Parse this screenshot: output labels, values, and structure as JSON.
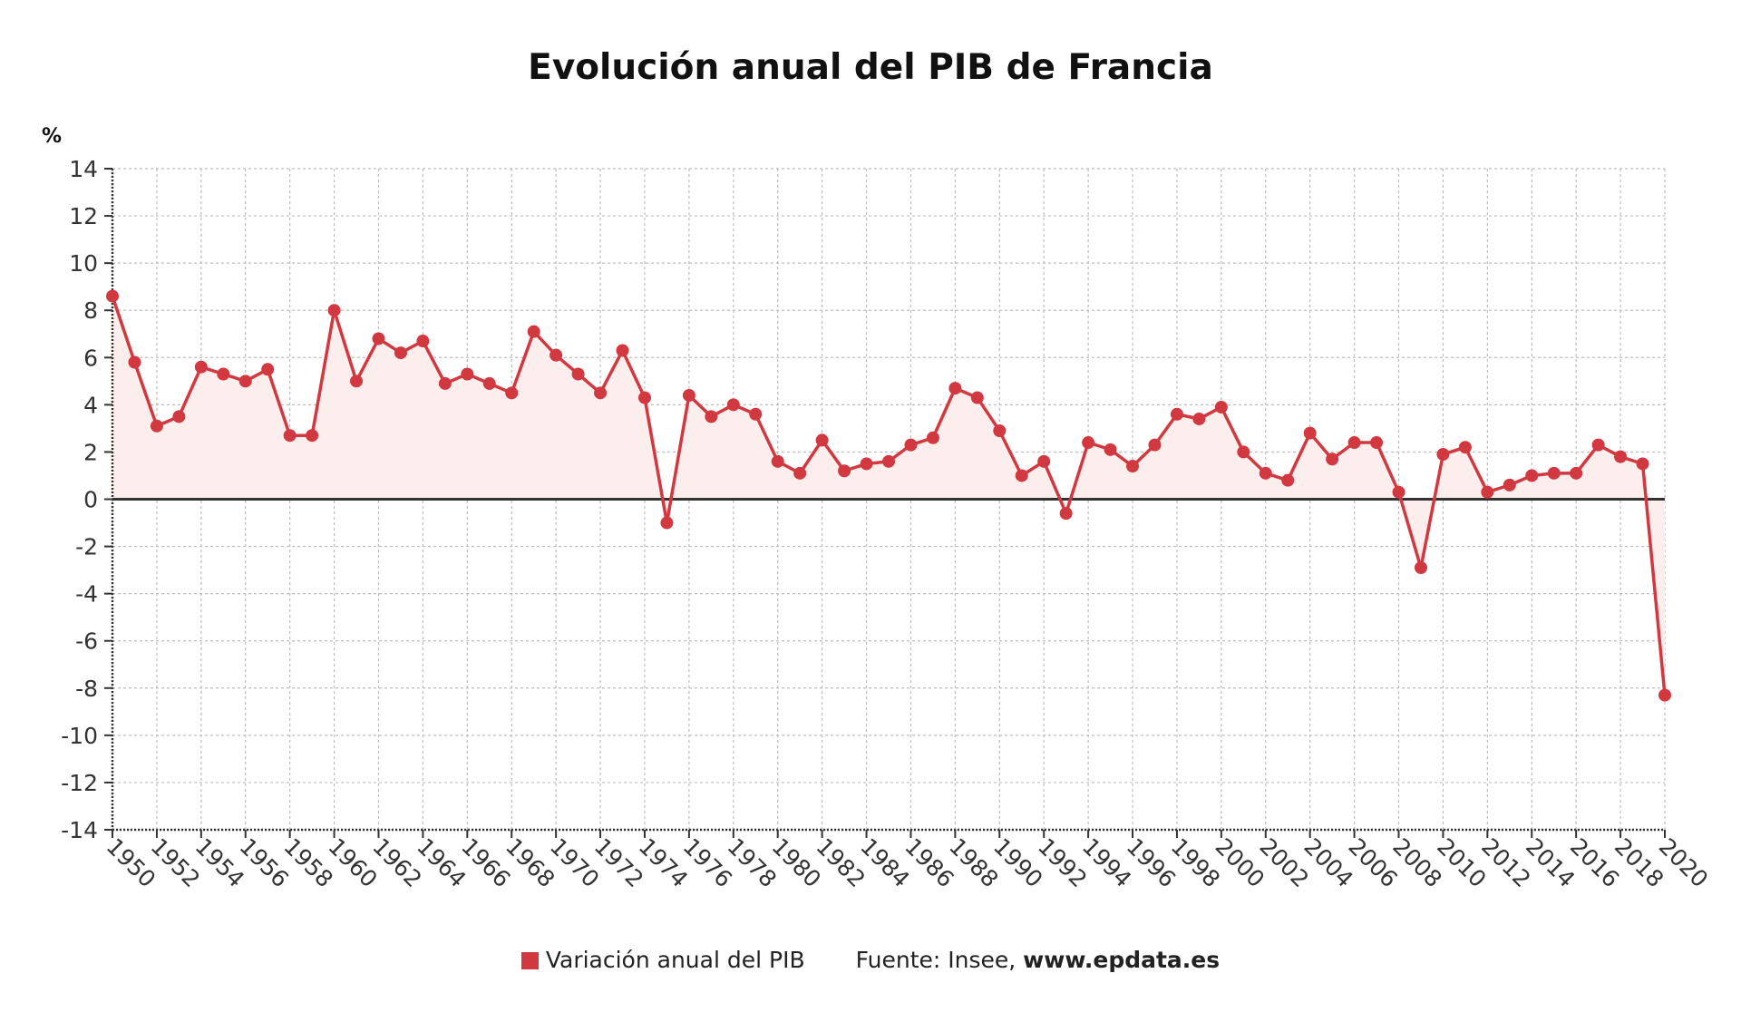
{
  "chart_data": {
    "type": "line",
    "title": "Evolución anual del PIB de Francia",
    "ylabel": "%",
    "xlabel": "",
    "ylim": [
      -14,
      14
    ],
    "yticks": [
      14,
      12,
      10,
      8,
      6,
      4,
      2,
      0,
      -2,
      -4,
      -6,
      -8,
      -10,
      -12,
      -14
    ],
    "xlim": [
      1950,
      2020
    ],
    "xticks": [
      "1950",
      "1952",
      "1954",
      "1956",
      "1958",
      "1960",
      "1962",
      "1964",
      "1966",
      "1968",
      "1970",
      "1972",
      "1974",
      "1976",
      "1978",
      "1980",
      "1982",
      "1984",
      "1986",
      "1988",
      "1990",
      "1992",
      "1994",
      "1996",
      "1998",
      "2000",
      "2002",
      "2004",
      "2006",
      "2008",
      "2010",
      "2012",
      "2014",
      "2016",
      "2018",
      "2020"
    ],
    "grid": true,
    "series": [
      {
        "name": "Variación anual del PIB",
        "color": "#d2383f",
        "fill": "#fdeeee",
        "x": [
          1950,
          1951,
          1952,
          1953,
          1954,
          1955,
          1956,
          1957,
          1958,
          1959,
          1960,
          1961,
          1962,
          1963,
          1964,
          1965,
          1966,
          1967,
          1968,
          1969,
          1970,
          1971,
          1972,
          1973,
          1974,
          1975,
          1976,
          1977,
          1978,
          1979,
          1980,
          1981,
          1982,
          1983,
          1984,
          1985,
          1986,
          1987,
          1988,
          1989,
          1990,
          1991,
          1992,
          1993,
          1994,
          1995,
          1996,
          1997,
          1998,
          1999,
          2000,
          2001,
          2002,
          2003,
          2004,
          2005,
          2006,
          2007,
          2008,
          2009,
          2010,
          2011,
          2012,
          2013,
          2014,
          2015,
          2016,
          2017,
          2018,
          2019,
          2020
        ],
        "values": [
          8.6,
          5.8,
          3.1,
          3.5,
          5.6,
          5.3,
          5.0,
          5.5,
          2.7,
          2.7,
          8.0,
          5.0,
          6.8,
          6.2,
          6.7,
          4.9,
          5.3,
          4.9,
          4.5,
          7.1,
          6.1,
          5.3,
          4.5,
          6.3,
          4.3,
          -1.0,
          4.4,
          3.5,
          4.0,
          3.6,
          1.6,
          1.1,
          2.5,
          1.2,
          1.5,
          1.6,
          2.3,
          2.6,
          4.7,
          4.3,
          2.9,
          1.0,
          1.6,
          -0.6,
          2.4,
          2.1,
          1.4,
          2.3,
          3.6,
          3.4,
          3.9,
          2.0,
          1.1,
          0.8,
          2.8,
          1.7,
          2.4,
          2.4,
          0.3,
          -2.9,
          1.9,
          2.2,
          0.3,
          0.6,
          1.0,
          1.1,
          1.1,
          2.3,
          1.8,
          1.5,
          -8.3
        ]
      }
    ]
  },
  "legend": {
    "series_label": "Variación anual del PIB",
    "swatch_color": "#d2383f",
    "source_prefix": "Fuente: Insee, ",
    "source_site": "www.epdata.es"
  }
}
